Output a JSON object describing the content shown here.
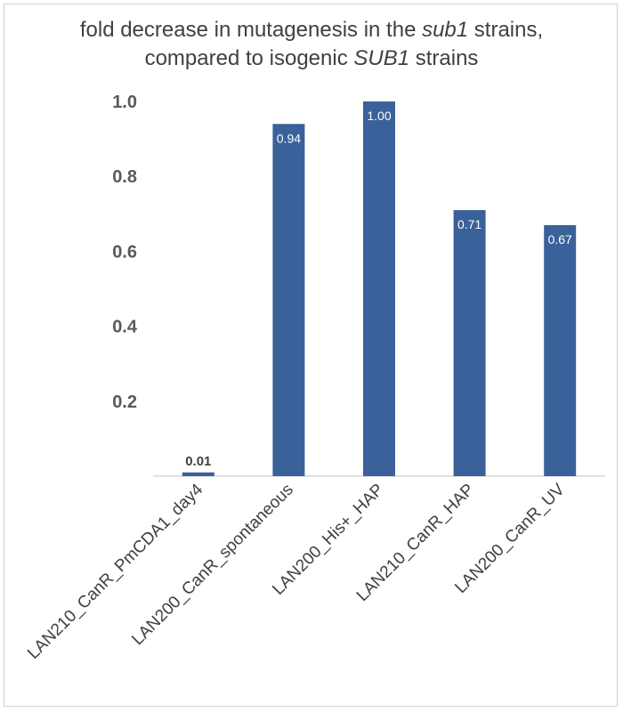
{
  "chart_data": {
    "type": "bar",
    "title_line1_pre": "fold decrease in mutagenesis in the ",
    "title_line1_em": "sub1",
    "title_line1_post": " strains,",
    "title_line2_pre": "compared to isogenic ",
    "title_line2_em": "SUB1",
    "title_line2_post": " strains",
    "categories": [
      "LAN210_CanR_PmCDA1_day4",
      "LAN200_CanR_spontaneous",
      "LAN200_His+_HAP",
      "LAN210_CanR_HAP",
      "LAN200_CanR_UV"
    ],
    "values": [
      0.01,
      0.94,
      1.0,
      0.71,
      0.67
    ],
    "data_labels": [
      "0.01",
      "0.94",
      "1.00",
      "0.71",
      "0.67"
    ],
    "ylim": [
      0,
      1.0
    ],
    "yticks": [
      "0.2",
      "0.4",
      "0.6",
      "0.8",
      "1.0"
    ],
    "bar_color": "#3A6199",
    "grid": false,
    "legend": "none"
  }
}
